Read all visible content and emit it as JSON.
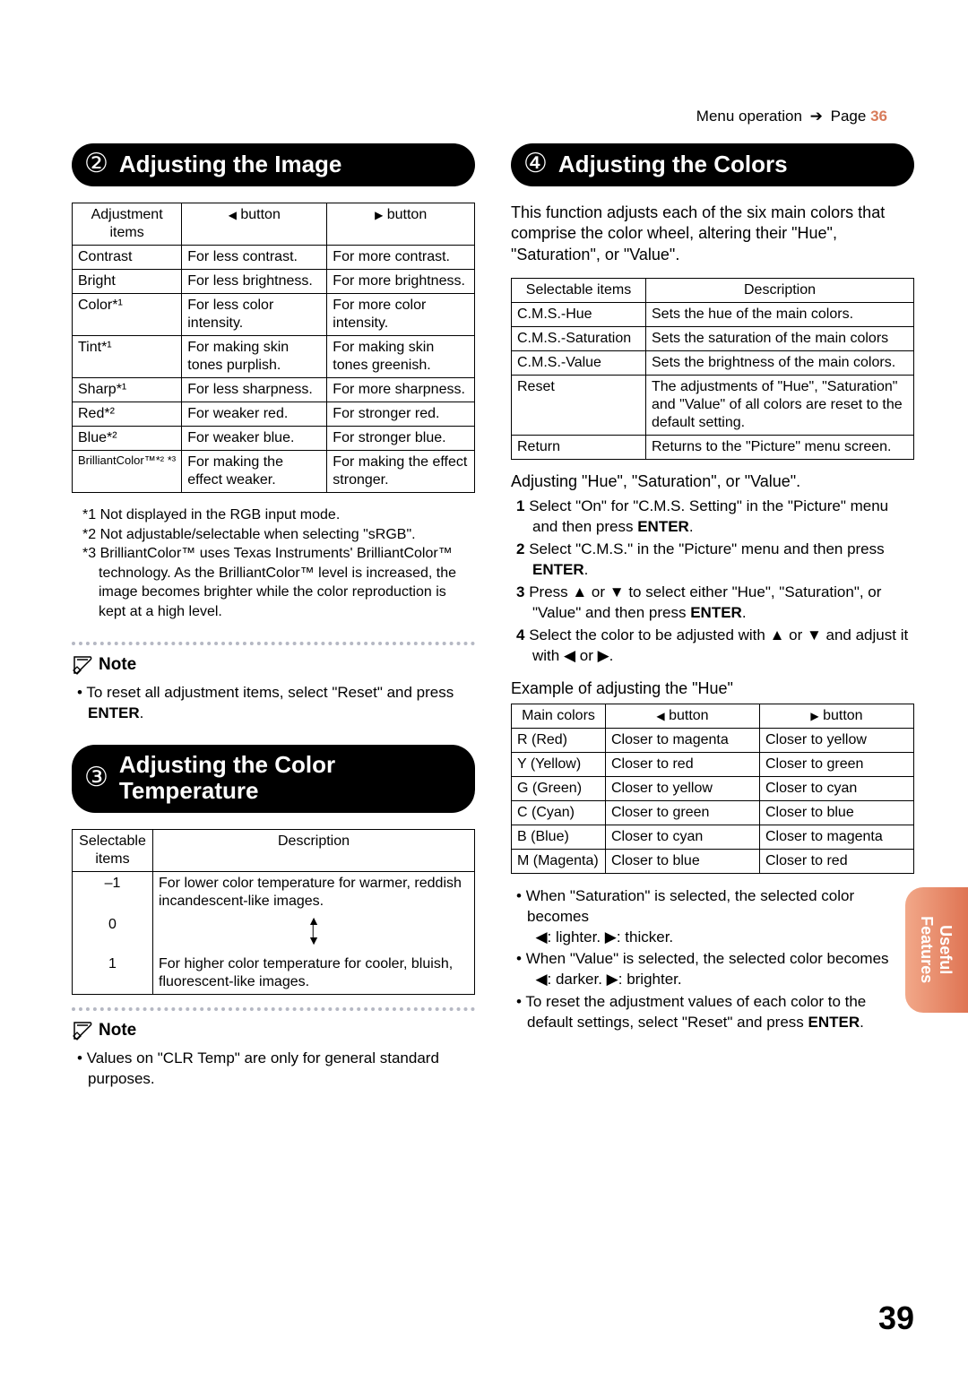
{
  "header": {
    "menu_op": "Menu operation",
    "arrow": "➔",
    "page_word": "Page",
    "page_ref": "36"
  },
  "side_tab": {
    "line1": "Useful",
    "line2": "Features"
  },
  "page_number": "39",
  "sec2": {
    "num": "②",
    "title": "Adjusting the Image",
    "th0": "Adjustment items",
    "th1_pre": "◀",
    "th1": " button",
    "th2_pre": "▶",
    "th2": " button",
    "rows": [
      {
        "a": "Contrast",
        "b": "For less contrast.",
        "c": "For more contrast."
      },
      {
        "a": "Bright",
        "b": "For less brightness.",
        "c": "For more brightness."
      },
      {
        "a": "Color*¹",
        "b": "For less color intensity.",
        "c": "For more color intensity."
      },
      {
        "a": "Tint*¹",
        "b": "For making skin tones purplish.",
        "c": "For making skin tones greenish."
      },
      {
        "a": "Sharp*¹",
        "b": "For less sharpness.",
        "c": "For more sharpness."
      },
      {
        "a": "Red*²",
        "b": "For weaker red.",
        "c": "For stronger red."
      },
      {
        "a": "Blue*²",
        "b": "For weaker blue.",
        "c": "For stronger blue."
      },
      {
        "a": "BrilliantColor™*² *³",
        "b": "For making the effect weaker.",
        "c": "For making the effect stronger."
      }
    ],
    "fn1": "*1 Not displayed in the RGB input mode.",
    "fn2": "*2 Not adjustable/selectable when selecting \"sRGB\".",
    "fn3": "*3 BrilliantColor™ uses Texas Instruments' BrilliantColor™ technology. As the BrilliantColor™ level is increased, the image becomes brighter while the color reproduction is kept at a high level.",
    "note_label": "Note",
    "note_text": "To reset all adjustment items, select \"Reset\" and press ",
    "note_enter": "ENTER",
    "note_end": "."
  },
  "sec3": {
    "num": "③",
    "title": "Adjusting the Color Temperature",
    "th0": "Selectable items",
    "th1": "Description",
    "row_m1": "–1",
    "row_0": "0",
    "row_1": "1",
    "desc_top": "For lower color temperature for warmer, reddish incandescent-like images.",
    "desc_bot": "For higher color temperature for cooler, bluish, fluorescent-like images.",
    "note_label": "Note",
    "note_text": "Values on \"CLR Temp\" are only for general standard purposes."
  },
  "sec4": {
    "num": "④",
    "title": "Adjusting the Colors",
    "intro": "This function adjusts each of the six main colors that comprise the color wheel, altering their \"Hue\", \"Saturation\", or \"Value\".",
    "th0": "Selectable items",
    "th1": "Description",
    "rows": [
      {
        "a": "C.M.S.-Hue",
        "b": "Sets the hue of the main colors."
      },
      {
        "a": "C.M.S.-Saturation",
        "b": "Sets the saturation of the main colors"
      },
      {
        "a": "C.M.S.-Value",
        "b": "Sets the brightness of the main colors."
      },
      {
        "a": "Reset",
        "b": "The adjustments of \"Hue\", \"Saturation\" and \"Value\" of all colors are reset to the default setting."
      },
      {
        "a": "Return",
        "b": "Returns to the \"Picture\" menu screen."
      }
    ],
    "steps_head": "Adjusting \"Hue\", \"Saturation\", or \"Value\".",
    "s1a": "Select \"On\" for \"C.M.S. Setting\" in the \"Picture\" menu and then press ",
    "s1b": "ENTER",
    "s1c": ".",
    "s2a": "Select \"C.M.S.\" in the \"Picture\" menu and then press ",
    "s2b": "ENTER",
    "s2c": ".",
    "s3a": "Press ▲ or ▼ to select either \"Hue\", \"Saturation\", or \"Value\" and then press ",
    "s3b": "ENTER",
    "s3c": ".",
    "s4": "Select the color to be adjusted with ▲ or ▼ and adjust it with ◀ or ▶.",
    "example_head": "Example of adjusting the \"Hue\"",
    "hth0": "Main colors",
    "hth1_pre": "◀",
    "hth1": " button",
    "hth2_pre": "▶",
    "hth2": " button",
    "hrows": [
      {
        "a": "R (Red)",
        "b": "Closer to magenta",
        "c": "Closer to yellow"
      },
      {
        "a": "Y (Yellow)",
        "b": "Closer to red",
        "c": "Closer to green"
      },
      {
        "a": "G (Green)",
        "b": "Closer to yellow",
        "c": "Closer to cyan"
      },
      {
        "a": "C (Cyan)",
        "b": "Closer to green",
        "c": "Closer to blue"
      },
      {
        "a": "B (Blue)",
        "b": "Closer to cyan",
        "c": "Closer to magenta"
      },
      {
        "a": "M (Magenta)",
        "b": "Closer to blue",
        "c": "Closer to red"
      }
    ],
    "b1": "When \"Saturation\" is selected, the selected color becomes",
    "b1sub": "◀: lighter.  ▶: thicker.",
    "b2": "When \"Value\" is selected, the selected color becomes",
    "b2sub": "◀: darker.  ▶: brighter.",
    "b3a": "To reset the adjustment values of each color to the default settings, select \"Reset\" and press ",
    "b3b": "ENTER",
    "b3c": "."
  }
}
